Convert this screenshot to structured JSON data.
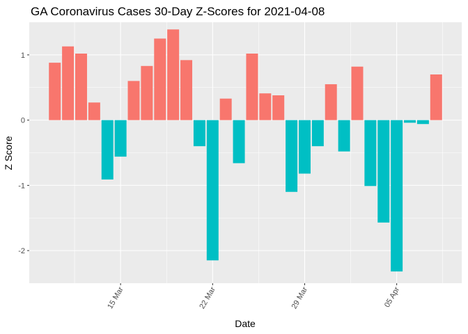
{
  "chart_data": {
    "type": "bar",
    "title": "GA Coronavirus Cases 30-Day Z-Scores for 2021-04-08",
    "xlabel": "Date",
    "ylabel": "Z Score",
    "ylim": [
      -2.5,
      1.5
    ],
    "grid": true,
    "legend": "none",
    "x_ticks": [
      {
        "date": "2021-03-15",
        "label": "15 Mar"
      },
      {
        "date": "2021-03-22",
        "label": "22 Mar"
      },
      {
        "date": "2021-03-29",
        "label": "29 Mar"
      },
      {
        "date": "2021-04-05",
        "label": "05 Apr"
      }
    ],
    "y_ticks": [
      {
        "value": -2,
        "label": "-2"
      },
      {
        "value": -1,
        "label": "-1"
      },
      {
        "value": 0,
        "label": "0"
      },
      {
        "value": 1,
        "label": "1"
      }
    ],
    "colors": {
      "positive": "#F8766D",
      "negative": "#00BFC4",
      "panel": "#EBEBEB",
      "grid": "#FFFFFF"
    },
    "bars": [
      {
        "date": "2021-03-10",
        "value": 0.88
      },
      {
        "date": "2021-03-11",
        "value": 1.13
      },
      {
        "date": "2021-03-12",
        "value": 1.02
      },
      {
        "date": "2021-03-13",
        "value": 0.27
      },
      {
        "date": "2021-03-14",
        "value": -0.91
      },
      {
        "date": "2021-03-15",
        "value": -0.56
      },
      {
        "date": "2021-03-16",
        "value": 0.6
      },
      {
        "date": "2021-03-17",
        "value": 0.83
      },
      {
        "date": "2021-03-18",
        "value": 1.25
      },
      {
        "date": "2021-03-19",
        "value": 1.39
      },
      {
        "date": "2021-03-20",
        "value": 0.92
      },
      {
        "date": "2021-03-21",
        "value": -0.4
      },
      {
        "date": "2021-03-22",
        "value": -2.15
      },
      {
        "date": "2021-03-23",
        "value": 0.33
      },
      {
        "date": "2021-03-24",
        "value": -0.66
      },
      {
        "date": "2021-03-25",
        "value": 1.02
      },
      {
        "date": "2021-03-26",
        "value": 0.41
      },
      {
        "date": "2021-03-27",
        "value": 0.38
      },
      {
        "date": "2021-03-28",
        "value": -1.1
      },
      {
        "date": "2021-03-29",
        "value": -0.82
      },
      {
        "date": "2021-03-30",
        "value": -0.4
      },
      {
        "date": "2021-03-31",
        "value": 0.55
      },
      {
        "date": "2021-04-01",
        "value": -0.48
      },
      {
        "date": "2021-04-02",
        "value": 0.82
      },
      {
        "date": "2021-04-03",
        "value": -1.01
      },
      {
        "date": "2021-04-04",
        "value": -1.57
      },
      {
        "date": "2021-04-05",
        "value": -2.32
      },
      {
        "date": "2021-04-06",
        "value": -0.04
      },
      {
        "date": "2021-04-07",
        "value": -0.06
      },
      {
        "date": "2021-04-08",
        "value": 0.7
      }
    ]
  }
}
